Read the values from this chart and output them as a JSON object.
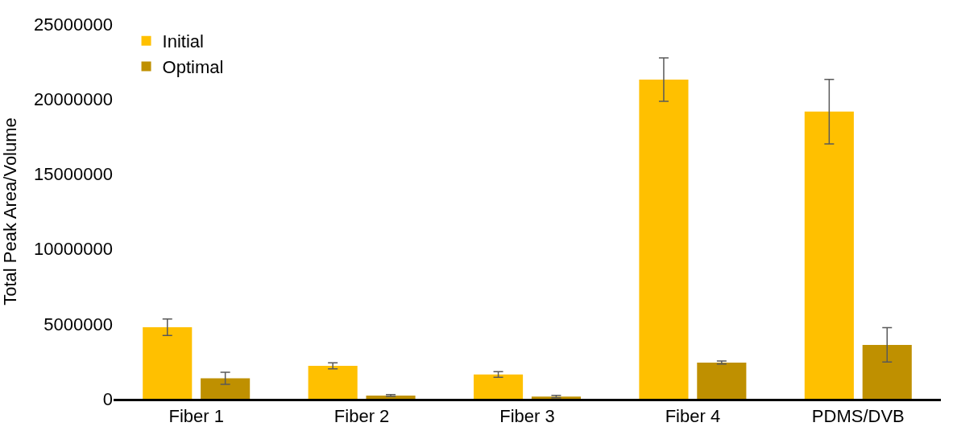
{
  "chart_data": {
    "type": "bar",
    "ylabel": "Total Peak Area/Volume",
    "categories": [
      "Fiber 1",
      "Fiber 2",
      "Fiber 3",
      "Fiber 4",
      "PDMS/DVB"
    ],
    "series": [
      {
        "name": "Initial",
        "color": "#ffc000",
        "values": [
          4780000,
          2200000,
          1620000,
          21300000,
          19160000
        ],
        "errors": [
          550000,
          200000,
          190000,
          1450000,
          2150000
        ]
      },
      {
        "name": "Optimal",
        "color": "#bf9000",
        "values": [
          1370000,
          220000,
          150000,
          2420000,
          3600000
        ],
        "errors": [
          400000,
          60000,
          80000,
          100000,
          1150000
        ]
      }
    ],
    "ylim": [
      0,
      25000000
    ],
    "yticks": [
      0,
      5000000,
      10000000,
      15000000,
      20000000,
      25000000
    ],
    "legend": "top left"
  }
}
